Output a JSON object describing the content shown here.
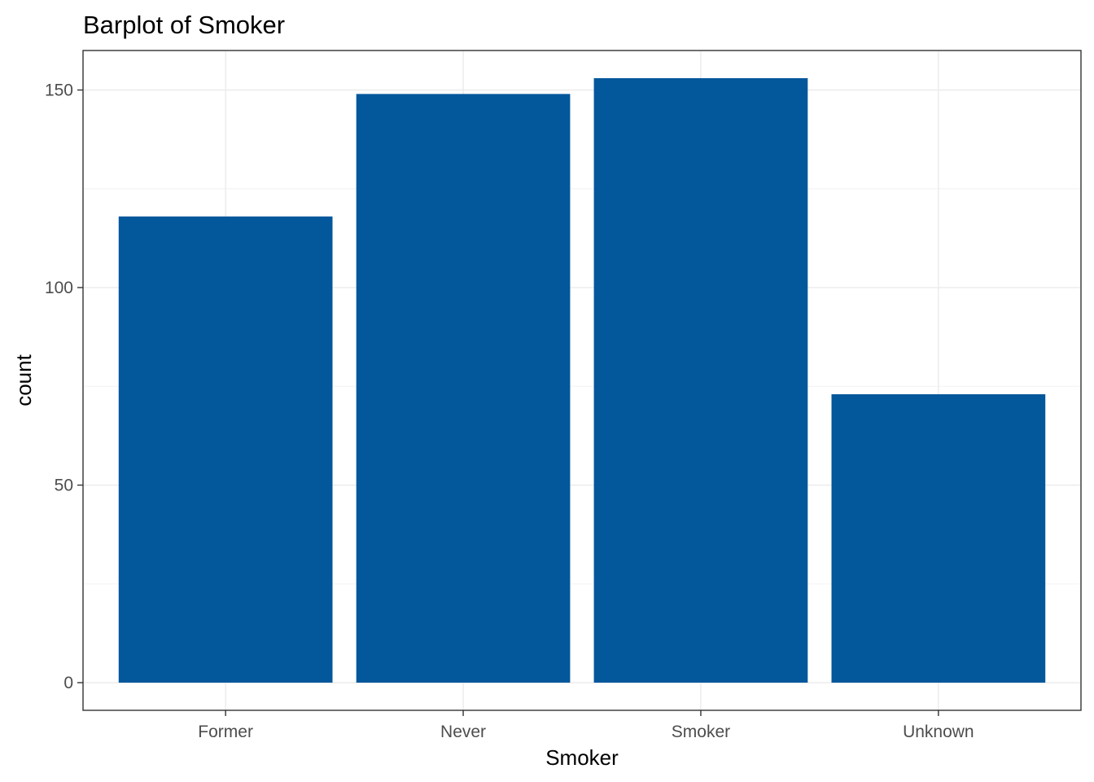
{
  "chart_data": {
    "type": "bar",
    "title": "Barplot of Smoker",
    "xlabel": "Smoker",
    "ylabel": "count",
    "categories": [
      "Former",
      "Never",
      "Smoker",
      "Unknown"
    ],
    "values": [
      118,
      149,
      153,
      73
    ],
    "ylim": [
      -7,
      160
    ],
    "yticks": [
      0,
      50,
      100,
      150
    ],
    "grid": true,
    "legend": "none",
    "colors": {
      "bar": "#03579B",
      "panel_border": "#333333",
      "grid_major": "#ebebeb",
      "grid_minor": "#f5f5f5",
      "tick_label": "#4d4d4d"
    }
  }
}
